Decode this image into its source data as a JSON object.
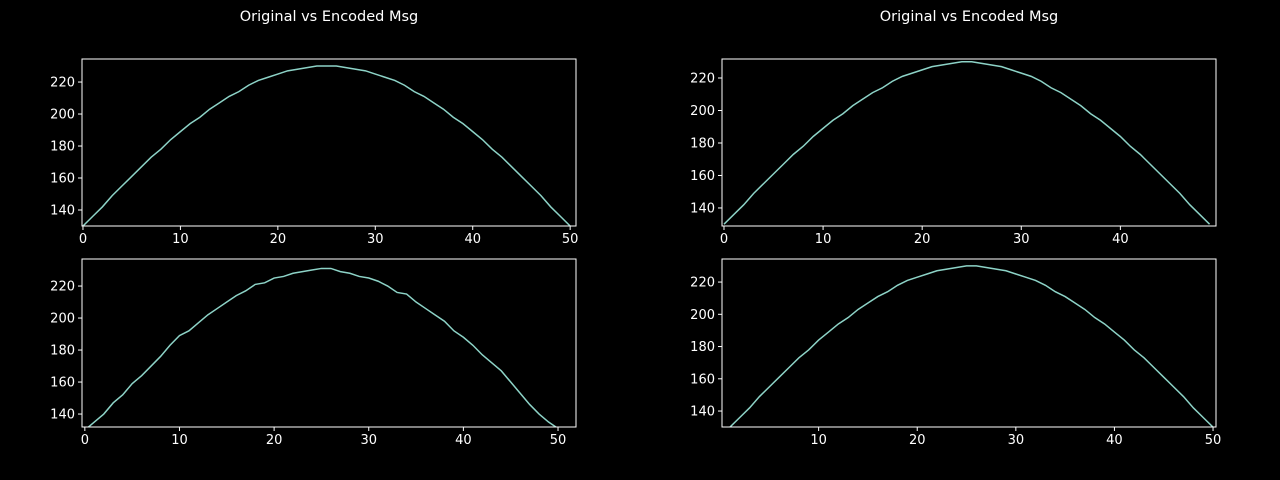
{
  "chart_data": [
    {
      "type": "line",
      "title": "Original vs Encoded Msg",
      "x": [
        0,
        1,
        2,
        3,
        4,
        5,
        6,
        7,
        8,
        9,
        10,
        11,
        12,
        13,
        14,
        15,
        16,
        17,
        18,
        19,
        20,
        21,
        22,
        23,
        24,
        25,
        26,
        27,
        28,
        29,
        30,
        31,
        32,
        33,
        34,
        35,
        36,
        37,
        38,
        39,
        40,
        41,
        42,
        43,
        44,
        45,
        46,
        47,
        48,
        49,
        50
      ],
      "values": [
        130,
        136,
        142,
        149,
        155,
        161,
        167,
        173,
        178,
        184,
        189,
        194,
        198,
        203,
        207,
        211,
        214,
        218,
        221,
        223,
        225,
        227,
        228,
        229,
        230,
        230,
        230,
        229,
        228,
        227,
        225,
        223,
        221,
        218,
        214,
        211,
        207,
        203,
        198,
        194,
        189,
        184,
        178,
        173,
        167,
        161,
        155,
        149,
        142,
        136,
        130
      ],
      "color": "#8dd3c7",
      "xlim": [
        -0.1,
        50.6
      ],
      "ylim": [
        130,
        234.4
      ],
      "xticks": [
        0,
        10,
        20,
        30,
        40,
        50
      ],
      "yticks": [
        140,
        160,
        180,
        200,
        220
      ]
    },
    {
      "type": "line",
      "title": "Original vs Encoded Msg",
      "x": [
        0,
        1,
        2,
        3,
        4,
        5,
        6,
        7,
        8,
        9,
        10,
        11,
        12,
        13,
        14,
        15,
        16,
        17,
        18,
        19,
        20,
        21,
        22,
        23,
        24,
        25,
        26,
        27,
        28,
        29,
        30,
        31,
        32,
        33,
        34,
        35,
        36,
        37,
        38,
        39,
        40,
        41,
        42,
        43,
        44,
        45,
        46,
        47,
        48,
        49
      ],
      "values": [
        130,
        136,
        142,
        149,
        155,
        161,
        167,
        173,
        178,
        184,
        189,
        194,
        198,
        203,
        207,
        211,
        214,
        218,
        221,
        223,
        225,
        227,
        228,
        229,
        230,
        230,
        229,
        228,
        227,
        225,
        223,
        221,
        218,
        214,
        211,
        207,
        203,
        198,
        194,
        189,
        184,
        178,
        173,
        167,
        161,
        155,
        149,
        142,
        136,
        130
      ],
      "color": "#8dd3c7",
      "xlim": [
        -0.2,
        49.65
      ],
      "ylim": [
        128.9,
        231.7
      ],
      "xticks": [
        0,
        10,
        20,
        30,
        40
      ],
      "yticks": [
        140,
        160,
        180,
        200,
        220
      ]
    },
    {
      "type": "line",
      "x": [
        0,
        1,
        2,
        3,
        4,
        5,
        6,
        7,
        8,
        9,
        10,
        11,
        12,
        13,
        14,
        15,
        16,
        17,
        18,
        19,
        20,
        21,
        22,
        23,
        24,
        25,
        26,
        27,
        28,
        29,
        30,
        31,
        32,
        33,
        34,
        35,
        36,
        37,
        38,
        39,
        40,
        41,
        42,
        43,
        44,
        45,
        46,
        47,
        48,
        49,
        50
      ],
      "values": [
        130,
        135,
        140,
        147,
        152,
        159,
        164,
        170,
        176,
        183,
        189,
        192,
        197,
        202,
        206,
        210,
        214,
        217,
        221,
        222,
        225,
        226,
        228,
        229,
        230,
        231,
        231,
        229,
        228,
        226,
        225,
        223,
        220,
        216,
        215,
        210,
        206,
        202,
        198,
        192,
        188,
        183,
        177,
        172,
        167,
        160,
        153,
        146,
        140,
        135,
        131
      ],
      "color": "#8dd3c7",
      "xlim": [
        -0.3,
        51.9
      ],
      "ylim": [
        131.9,
        236.9
      ],
      "xticks": [
        0,
        10,
        20,
        30,
        40,
        50
      ],
      "yticks": [
        140,
        160,
        180,
        200,
        220
      ]
    },
    {
      "type": "line",
      "x": [
        1,
        2,
        3,
        4,
        5,
        6,
        7,
        8,
        9,
        10,
        11,
        12,
        13,
        14,
        15,
        16,
        17,
        18,
        19,
        20,
        21,
        22,
        23,
        24,
        25,
        26,
        27,
        28,
        29,
        30,
        31,
        32,
        33,
        34,
        35,
        36,
        37,
        38,
        39,
        40,
        41,
        42,
        43,
        44,
        45,
        46,
        47,
        48,
        49,
        50
      ],
      "values": [
        130,
        136,
        142,
        149,
        155,
        161,
        167,
        173,
        178,
        184,
        189,
        194,
        198,
        203,
        207,
        211,
        214,
        218,
        221,
        223,
        225,
        227,
        228,
        229,
        230,
        230,
        229,
        228,
        227,
        225,
        223,
        221,
        218,
        214,
        211,
        207,
        203,
        198,
        194,
        189,
        184,
        178,
        173,
        167,
        161,
        155,
        149,
        142,
        136,
        130
      ],
      "color": "#8dd3c7",
      "xlim": [
        0.2,
        50.3
      ],
      "ylim": [
        130.1,
        234.3
      ],
      "xticks": [
        10,
        20,
        30,
        40,
        50
      ],
      "yticks": [
        140,
        160,
        180,
        200,
        220
      ]
    }
  ]
}
